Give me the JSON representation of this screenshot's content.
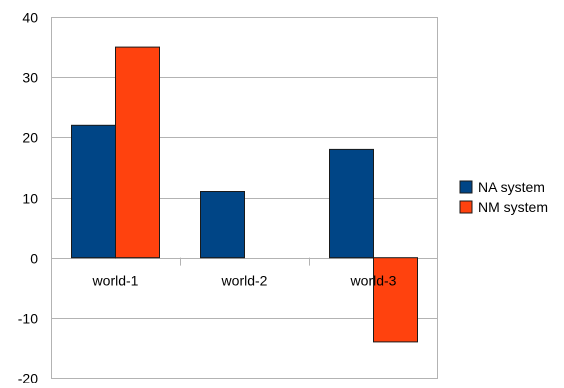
{
  "chart_data": {
    "type": "bar",
    "categories": [
      "world-1",
      "world-2",
      "world-3"
    ],
    "series": [
      {
        "name": "NA system",
        "color": "#004586",
        "values": [
          22,
          11,
          18
        ]
      },
      {
        "name": "NM system",
        "color": "#ff420e",
        "values": [
          35,
          0,
          -14
        ]
      }
    ],
    "ylim": [
      -20,
      40
    ],
    "yticks": [
      "-20",
      "-10",
      "0",
      "10",
      "20",
      "30",
      "40"
    ],
    "grid": true,
    "legend_position": "right"
  }
}
